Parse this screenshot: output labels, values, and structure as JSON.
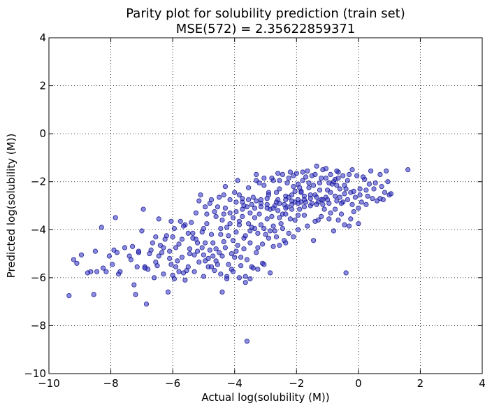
{
  "chart_data": {
    "type": "scatter",
    "title": "Parity plot for solubility prediction (train set)",
    "subtitle": "MSE(572) = 2.35622859371",
    "xlabel": "Actual log(solubility (M))",
    "ylabel": "Predicted log(solubility (M))",
    "xlim": [
      -10,
      4
    ],
    "ylim": [
      -10,
      4
    ],
    "xticks": [
      -10,
      -8,
      -6,
      -4,
      -2,
      0,
      2,
      4
    ],
    "yticks": [
      -10,
      -8,
      -6,
      -4,
      -2,
      0,
      2,
      4
    ],
    "xtick_labels": [
      "−10",
      "−8",
      "−6",
      "−4",
      "−2",
      "0",
      "2",
      "4"
    ],
    "ytick_labels": [
      "−10",
      "−8",
      "−6",
      "−4",
      "−2",
      "0",
      "2",
      "4"
    ],
    "grid": true,
    "grid_style": "dotted",
    "point_color": "#3c3cc8",
    "point_edge_color": "#000080",
    "points": [
      [
        -9.35,
        -6.75
      ],
      [
        -9.2,
        -5.25
      ],
      [
        -8.95,
        -5.05
      ],
      [
        -8.65,
        -5.75
      ],
      [
        -8.55,
        -6.7
      ],
      [
        -8.5,
        -4.9
      ],
      [
        -8.45,
        -5.75
      ],
      [
        -8.3,
        -3.9
      ],
      [
        -8.25,
        -5.6
      ],
      [
        -7.95,
        -5.45
      ],
      [
        -7.9,
        -4.85
      ],
      [
        -7.85,
        -3.5
      ],
      [
        -7.8,
        -4.95
      ],
      [
        -7.75,
        -5.85
      ],
      [
        -7.7,
        -5.75
      ],
      [
        -7.4,
        -5.1
      ],
      [
        -7.3,
        -4.7
      ],
      [
        -7.25,
        -6.3
      ],
      [
        -7.2,
        -6.7
      ],
      [
        -7.15,
        -5.55
      ],
      [
        -7.1,
        -4.95
      ],
      [
        -7.0,
        -4.05
      ],
      [
        -6.95,
        -3.15
      ],
      [
        -6.9,
        -5.55
      ],
      [
        -6.85,
        -7.1
      ],
      [
        -6.8,
        -5.65
      ],
      [
        -6.7,
        -4.85
      ],
      [
        -6.6,
        -6.0
      ],
      [
        -6.5,
        -5.5
      ],
      [
        -6.45,
        -3.55
      ],
      [
        -6.4,
        -4.65
      ],
      [
        -6.35,
        -4.95
      ],
      [
        -6.3,
        -5.85
      ],
      [
        -6.2,
        -4.25
      ],
      [
        -6.15,
        -6.6
      ],
      [
        -6.1,
        -4.9
      ],
      [
        -6.05,
        -5.45
      ],
      [
        -6.0,
        -4.3
      ],
      [
        -5.95,
        -6.05
      ],
      [
        -5.9,
        -4.75
      ],
      [
        -5.85,
        -5.3
      ],
      [
        -5.8,
        -4.6
      ],
      [
        -5.75,
        -3.65
      ],
      [
        -5.7,
        -4.4
      ],
      [
        -5.65,
        -5.8
      ],
      [
        -5.6,
        -3.8
      ],
      [
        -5.55,
        -5.7
      ],
      [
        -5.5,
        -4.15
      ],
      [
        -5.45,
        -5.0
      ],
      [
        -5.4,
        -3.7
      ],
      [
        -5.35,
        -4.35
      ],
      [
        -5.3,
        -5.75
      ],
      [
        -5.25,
        -3.3
      ],
      [
        -5.2,
        -4.9
      ],
      [
        -5.15,
        -5.35
      ],
      [
        -5.1,
        -2.55
      ],
      [
        -5.05,
        -4.1
      ],
      [
        -5.0,
        -5.95
      ],
      [
        -4.95,
        -4.55
      ],
      [
        -4.9,
        -3.35
      ],
      [
        -4.85,
        -5.55
      ],
      [
        -4.8,
        -2.9
      ],
      [
        -4.75,
        -4.2
      ],
      [
        -4.7,
        -5.1
      ],
      [
        -4.65,
        -3.25
      ],
      [
        -4.6,
        -4.8
      ],
      [
        -4.55,
        -5.45
      ],
      [
        -4.5,
        -2.65
      ],
      [
        -4.45,
        -3.95
      ],
      [
        -4.4,
        -6.6
      ],
      [
        -4.35,
        -4.5
      ],
      [
        -4.3,
        -3.1
      ],
      [
        -4.25,
        -5.95
      ],
      [
        -4.2,
        -4.25
      ],
      [
        -4.15,
        -2.75
      ],
      [
        -4.1,
        -5.65
      ],
      [
        -4.05,
        -3.5
      ],
      [
        -4.0,
        -2.45
      ],
      [
        -3.95,
        -4.9
      ],
      [
        -3.9,
        -1.95
      ],
      [
        -3.85,
        -3.65
      ],
      [
        -3.8,
        -5.15
      ],
      [
        -3.75,
        -2.85
      ],
      [
        -3.7,
        -4.35
      ],
      [
        -3.65,
        -6.2
      ],
      [
        -3.6,
        -3.05
      ],
      [
        -3.55,
        -2.25
      ],
      [
        -3.5,
        -4.05
      ],
      [
        -3.45,
        -5.55
      ],
      [
        -3.4,
        -2.65
      ],
      [
        -3.35,
        -3.95
      ],
      [
        -3.3,
        -1.95
      ],
      [
        -3.25,
        -4.75
      ],
      [
        -3.2,
        -3.35
      ],
      [
        -3.15,
        -2.9
      ],
      [
        -3.1,
        -5.4
      ],
      [
        -3.05,
        -2.15
      ],
      [
        -3.0,
        -4.2
      ],
      [
        -2.95,
        -3.1
      ],
      [
        -2.9,
        -2.45
      ],
      [
        -2.85,
        -5.8
      ],
      [
        -2.8,
        -3.45
      ],
      [
        -2.75,
        -1.95
      ],
      [
        -2.7,
        -4.05
      ],
      [
        -2.65,
        -2.85
      ],
      [
        -2.6,
        -3.2
      ],
      [
        -2.55,
        -2.3
      ],
      [
        -2.5,
        -3.75
      ],
      [
        -2.45,
        -1.7
      ],
      [
        -2.4,
        -4.45
      ],
      [
        -2.35,
        -2.6
      ],
      [
        -2.3,
        -3.05
      ],
      [
        -2.25,
        -1.85
      ],
      [
        -2.2,
        -3.55
      ],
      [
        -2.15,
        -2.95
      ],
      [
        -2.1,
        -2.2
      ],
      [
        -2.05,
        -3.6
      ],
      [
        -2.0,
        -1.65
      ],
      [
        -1.95,
        -2.75
      ],
      [
        -1.9,
        -3.15
      ],
      [
        -1.85,
        -2.4
      ],
      [
        -1.8,
        -1.95
      ],
      [
        -1.75,
        -3.4
      ],
      [
        -1.7,
        -2.85
      ],
      [
        -1.65,
        -1.55
      ],
      [
        -1.6,
        -2.25
      ],
      [
        -1.55,
        -3.0
      ],
      [
        -1.5,
        -1.75
      ],
      [
        -1.45,
        -4.45
      ],
      [
        -1.4,
        -2.55
      ],
      [
        -1.35,
        -1.35
      ],
      [
        -1.3,
        -3.6
      ],
      [
        -1.25,
        -2.05
      ],
      [
        -1.2,
        -2.75
      ],
      [
        -1.15,
        -1.5
      ],
      [
        -1.1,
        -3.15
      ],
      [
        -1.05,
        -1.85
      ],
      [
        -1.0,
        -2.35
      ],
      [
        -0.95,
        -3.55
      ],
      [
        -0.9,
        -1.7
      ],
      [
        -0.85,
        -2.1
      ],
      [
        -0.8,
        -4.05
      ],
      [
        -0.75,
        -1.9
      ],
      [
        -0.7,
        -2.8
      ],
      [
        -0.65,
        -1.6
      ],
      [
        -0.6,
        -2.3
      ],
      [
        -0.55,
        -3.35
      ],
      [
        -0.5,
        -1.75
      ],
      [
        -0.45,
        -2.15
      ],
      [
        -0.4,
        -5.8
      ],
      [
        -0.35,
        -1.95
      ],
      [
        -0.3,
        -3.85
      ],
      [
        -0.25,
        -2.45
      ],
      [
        -0.2,
        -1.5
      ],
      [
        -0.15,
        -3.25
      ],
      [
        -0.1,
        -2.65
      ],
      [
        -0.05,
        -1.75
      ],
      [
        0.0,
        -3.75
      ],
      [
        0.05,
        -2.3
      ],
      [
        0.1,
        -2.85
      ],
      [
        0.2,
        -1.9
      ],
      [
        0.3,
        -2.6
      ],
      [
        0.4,
        -1.55
      ],
      [
        0.5,
        -2.3
      ],
      [
        0.6,
        -2.8
      ],
      [
        0.7,
        -1.7
      ],
      [
        0.8,
        -2.75
      ],
      [
        0.9,
        -1.55
      ],
      [
        1.0,
        -2.55
      ],
      [
        1.05,
        -2.5
      ],
      [
        1.6,
        -1.5
      ],
      [
        -3.6,
        -8.65
      ],
      [
        -6.55,
        -4.3
      ],
      [
        -5.0,
        -3.95
      ],
      [
        -4.3,
        -2.2
      ],
      [
        -3.85,
        -2.55
      ],
      [
        -3.5,
        -3.3
      ],
      [
        -3.2,
        -2.05
      ],
      [
        -2.95,
        -2.7
      ],
      [
        -2.7,
        -3.0
      ],
      [
        -2.45,
        -3.35
      ],
      [
        -2.25,
        -2.65
      ],
      [
        -2.05,
        -2.4
      ],
      [
        -1.85,
        -2.85
      ],
      [
        -1.6,
        -2.05
      ],
      [
        -1.35,
        -2.65
      ],
      [
        -1.15,
        -2.95
      ],
      [
        -0.9,
        -2.45
      ],
      [
        -0.7,
        -2.15
      ],
      [
        -0.45,
        -2.5
      ],
      [
        -3.7,
        -3.0
      ],
      [
        -3.3,
        -2.8
      ],
      [
        -2.9,
        -2.55
      ],
      [
        -2.6,
        -2.75
      ],
      [
        -2.4,
        -2.95
      ],
      [
        -2.15,
        -2.55
      ],
      [
        -1.95,
        -2.1
      ],
      [
        -1.75,
        -2.6
      ],
      [
        -1.5,
        -2.9
      ],
      [
        -1.25,
        -2.35
      ],
      [
        -1.05,
        -2.65
      ],
      [
        -0.8,
        -2.0
      ],
      [
        -0.6,
        -2.65
      ],
      [
        -4.4,
        -3.6
      ],
      [
        -4.15,
        -3.75
      ],
      [
        -3.95,
        -4.1
      ],
      [
        -3.75,
        -3.45
      ],
      [
        -3.55,
        -3.75
      ],
      [
        -3.35,
        -3.5
      ],
      [
        -3.15,
        -3.8
      ],
      [
        -2.95,
        -3.55
      ],
      [
        -2.75,
        -3.85
      ],
      [
        -2.55,
        -3.5
      ],
      [
        -2.35,
        -3.35
      ],
      [
        -2.15,
        -3.15
      ],
      [
        -1.95,
        -3.4
      ],
      [
        -1.75,
        -3.05
      ],
      [
        -4.7,
        -4.55
      ],
      [
        -4.5,
        -4.95
      ],
      [
        -4.3,
        -4.75
      ],
      [
        -4.1,
        -5.0
      ],
      [
        -3.9,
        -4.65
      ],
      [
        -3.7,
        -4.8
      ],
      [
        -3.5,
        -4.55
      ],
      [
        -3.3,
        -4.95
      ],
      [
        -3.1,
        -4.6
      ],
      [
        -2.9,
        -4.35
      ],
      [
        -5.2,
        -4.55
      ],
      [
        -5.0,
        -5.05
      ],
      [
        -4.8,
        -4.85
      ],
      [
        -4.6,
        -5.3
      ],
      [
        -4.4,
        -5.1
      ],
      [
        -4.2,
        -5.45
      ],
      [
        -4.0,
        -5.15
      ],
      [
        -3.8,
        -5.5
      ],
      [
        -3.6,
        -5.25
      ],
      [
        -3.4,
        -5.6
      ],
      [
        -6.3,
        -4.75
      ],
      [
        -6.1,
        -5.2
      ],
      [
        -5.9,
        -5.55
      ],
      [
        -5.7,
        -5.15
      ],
      [
        -5.5,
        -5.55
      ],
      [
        -5.3,
        -5.05
      ],
      [
        -6.75,
        -5.0
      ],
      [
        -6.55,
        -5.35
      ],
      [
        -7.55,
        -4.75
      ],
      [
        -7.35,
        -5.25
      ],
      [
        -2.8,
        -1.85
      ],
      [
        -2.55,
        -1.95
      ],
      [
        -2.3,
        -2.05
      ],
      [
        -2.1,
        -1.75
      ],
      [
        -1.9,
        -2.25
      ],
      [
        -1.7,
        -1.8
      ],
      [
        -1.45,
        -2.15
      ],
      [
        -1.2,
        -1.85
      ],
      [
        -0.95,
        -2.05
      ],
      [
        -0.65,
        -1.85
      ],
      [
        -0.3,
        -1.7
      ],
      [
        0.15,
        -1.8
      ],
      [
        0.35,
        -2.1
      ],
      [
        0.55,
        -2.05
      ],
      [
        0.75,
        -2.2
      ],
      [
        0.95,
        -2.0
      ],
      [
        -3.95,
        -3.25
      ],
      [
        -3.75,
        -2.7
      ],
      [
        -3.45,
        -2.95
      ],
      [
        -3.15,
        -3.05
      ],
      [
        -2.85,
        -3.15
      ],
      [
        -2.65,
        -2.45
      ],
      [
        -2.35,
        -2.75
      ],
      [
        -2.05,
        -2.85
      ],
      [
        -1.85,
        -2.45
      ],
      [
        -1.55,
        -2.55
      ],
      [
        -1.3,
        -2.85
      ],
      [
        -1.0,
        -2.75
      ],
      [
        -0.75,
        -3.15
      ],
      [
        -0.5,
        -2.85
      ],
      [
        -0.2,
        -2.95
      ],
      [
        0.05,
        -2.55
      ],
      [
        -4.9,
        -3.75
      ],
      [
        -4.6,
        -3.45
      ],
      [
        -4.45,
        -4.2
      ],
      [
        -4.25,
        -3.9
      ],
      [
        -4.05,
        -4.45
      ],
      [
        -3.85,
        -3.8
      ],
      [
        -3.65,
        -4.25
      ],
      [
        -3.45,
        -3.9
      ],
      [
        -3.25,
        -4.15
      ],
      [
        -3.05,
        -3.95
      ],
      [
        -2.85,
        -4.05
      ],
      [
        -2.65,
        -4.3
      ],
      [
        -2.45,
        -3.95
      ],
      [
        -2.25,
        -4.15
      ],
      [
        -5.45,
        -4.8
      ],
      [
        -5.25,
        -4.4
      ],
      [
        -5.05,
        -4.75
      ],
      [
        -4.85,
        -5.2
      ],
      [
        -4.65,
        -5.7
      ],
      [
        -4.45,
        -5.85
      ],
      [
        -4.25,
        -6.05
      ],
      [
        -4.05,
        -5.75
      ],
      [
        -3.85,
        -6.0
      ],
      [
        -5.6,
        -6.1
      ],
      [
        -5.8,
        -5.75
      ],
      [
        -6.0,
        -5.9
      ],
      [
        -6.9,
        -5.6
      ],
      [
        -7.1,
        -4.9
      ],
      [
        -8.05,
        -5.1
      ],
      [
        -8.15,
        -5.75
      ],
      [
        -8.75,
        -5.8
      ],
      [
        -9.1,
        -5.4
      ],
      [
        -3.3,
        -1.7
      ],
      [
        -3.05,
        -1.85
      ],
      [
        -2.6,
        -1.65
      ],
      [
        -2.2,
        -1.6
      ],
      [
        -1.8,
        -1.6
      ],
      [
        -1.4,
        -1.7
      ],
      [
        -1.05,
        -1.45
      ],
      [
        -0.7,
        -1.55
      ],
      [
        -0.4,
        -2.3
      ],
      [
        0.25,
        -2.35
      ],
      [
        -4.35,
        -2.55
      ],
      [
        -4.15,
        -3.3
      ],
      [
        -3.95,
        -2.85
      ],
      [
        -3.75,
        -3.15
      ],
      [
        -3.55,
        -2.75
      ],
      [
        -3.35,
        -3.1
      ],
      [
        -3.15,
        -2.75
      ],
      [
        -2.95,
        -2.95
      ],
      [
        -2.75,
        -3.1
      ],
      [
        -2.55,
        -2.9
      ],
      [
        -2.35,
        -3.1
      ],
      [
        -2.15,
        -2.8
      ],
      [
        -1.95,
        -2.9
      ],
      [
        -1.75,
        -2.75
      ],
      [
        -1.55,
        -2.7
      ],
      [
        -1.35,
        -2.95
      ],
      [
        -1.15,
        -2.75
      ],
      [
        -0.95,
        -2.9
      ],
      [
        -0.75,
        -2.6
      ],
      [
        -0.55,
        -2.9
      ],
      [
        -0.35,
        -2.75
      ],
      [
        -0.15,
        -2.4
      ],
      [
        -5.15,
        -2.8
      ],
      [
        -4.95,
        -3.05
      ],
      [
        -4.75,
        -2.75
      ],
      [
        -4.55,
        -3.05
      ],
      [
        -4.35,
        -3.35
      ],
      [
        -5.35,
        -4.15
      ],
      [
        -5.65,
        -3.85
      ],
      [
        -5.95,
        -3.95
      ],
      [
        -6.25,
        -4.4
      ],
      [
        -6.45,
        -5.1
      ],
      [
        -6.65,
        -4.55
      ],
      [
        -6.05,
        -3.65
      ],
      [
        -4.95,
        -5.3
      ],
      [
        -4.75,
        -5.55
      ],
      [
        -3.65,
        -5.95
      ],
      [
        -3.5,
        -6.05
      ],
      [
        -3.25,
        -5.65
      ],
      [
        -3.05,
        -5.45
      ],
      [
        -2.75,
        -4.7
      ],
      [
        -2.55,
        -4.65
      ],
      [
        -2.35,
        -4.55
      ],
      [
        -2.1,
        -4.3
      ],
      [
        -1.95,
        -4.0
      ],
      [
        -1.65,
        -3.85
      ],
      [
        -1.4,
        -3.65
      ],
      [
        -1.2,
        -3.45
      ],
      [
        -0.9,
        -3.3
      ],
      [
        -0.65,
        -3.6
      ],
      [
        -0.45,
        -3.8
      ],
      [
        -0.25,
        -3.55
      ],
      [
        0.0,
        -3.1
      ],
      [
        0.25,
        -2.95
      ],
      [
        0.45,
        -2.7
      ],
      [
        0.7,
        -2.7
      ],
      [
        0.85,
        -2.45
      ]
    ]
  }
}
